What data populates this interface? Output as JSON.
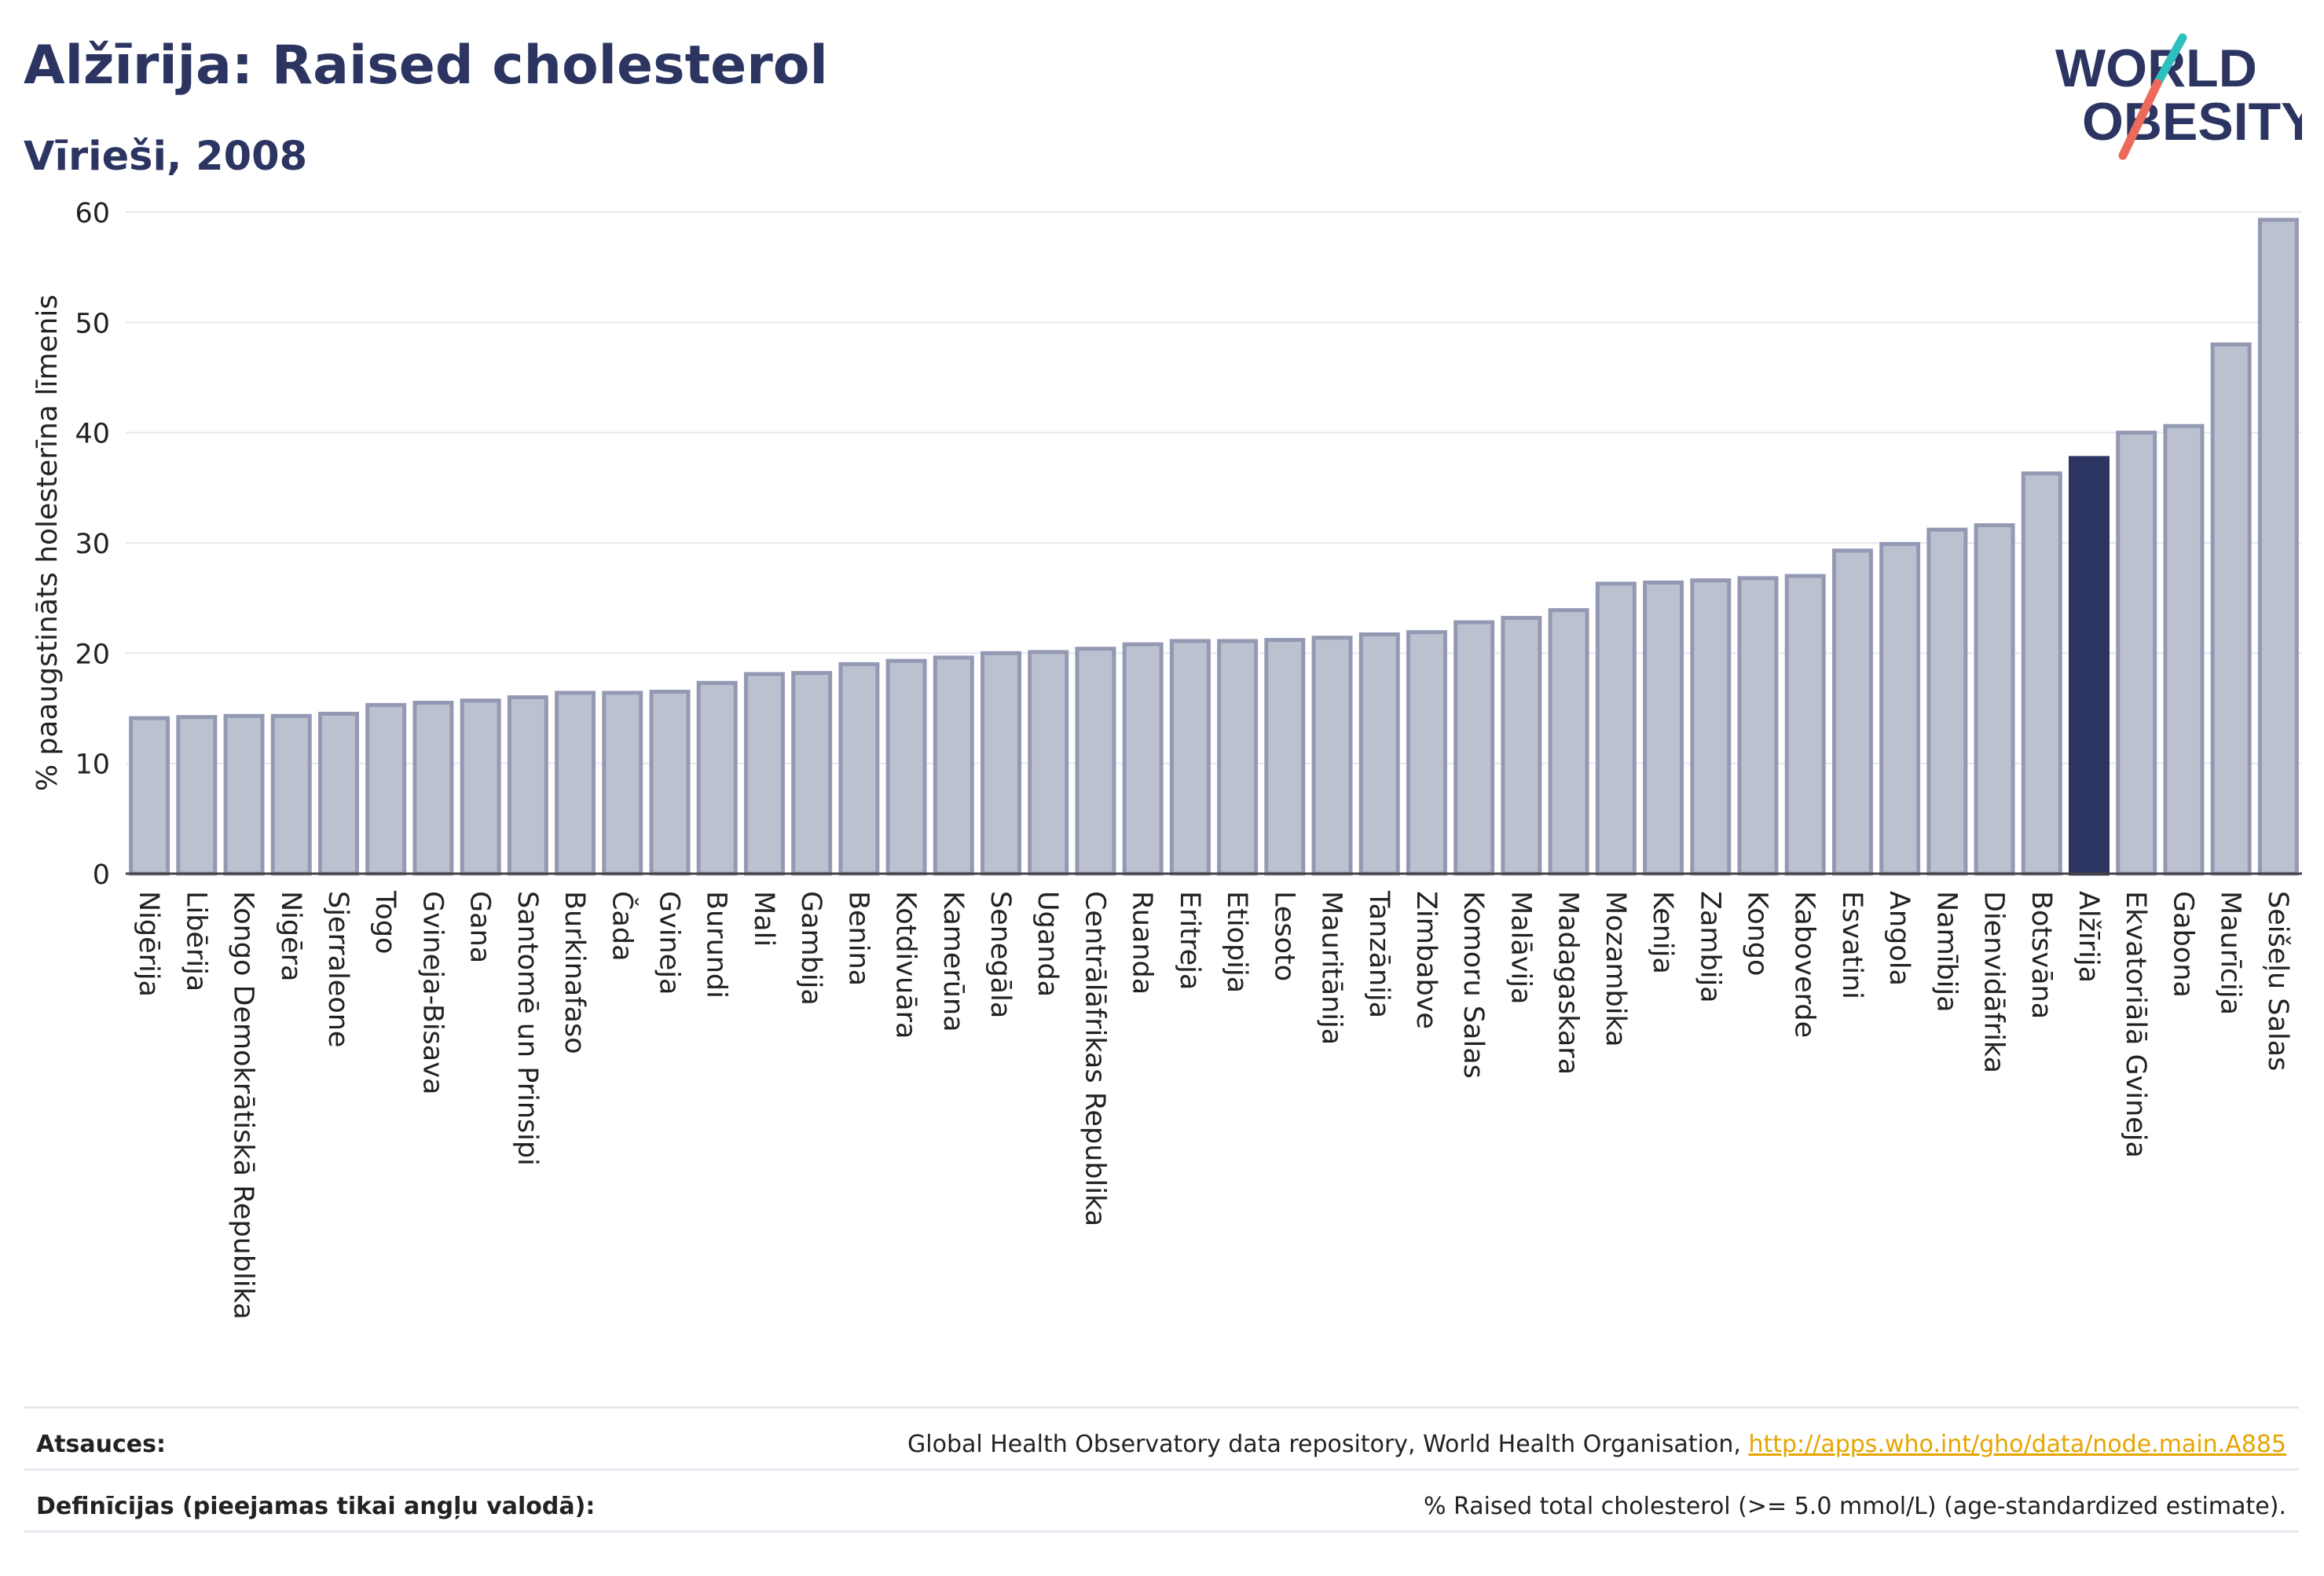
{
  "header": {
    "title": "Alžīrija: Raised cholesterol",
    "subtitle": "Vīrieši, 2008"
  },
  "logo": {
    "line1": "WORLD",
    "line2": "OBESITY"
  },
  "footer": {
    "sources_label": "Atsauces:",
    "sources_text": "Global Health Observatory data repository, World Health Organisation, ",
    "sources_link": "http://apps.who.int/gho/data/node.main.A885",
    "definitions_label": "Definīcijas (pieejamas tikai angļu valodā):",
    "definitions_text": "% Raised total cholesterol (>= 5.0 mmol/L) (age-standardized estimate)."
  },
  "colors": {
    "bar": "#bcc1d0",
    "bar_border": "#9399b2",
    "highlight": "#2c3561",
    "grid": "#e6e8f0",
    "title": "#2c3561"
  },
  "chart_data": {
    "type": "bar",
    "ylabel": "% paaugstināts holesterīna līmenis",
    "ylim": [
      0,
      60
    ],
    "yticks": [
      0,
      10,
      20,
      30,
      40,
      50,
      60
    ],
    "grid": true,
    "highlight": "Alžīrija",
    "categories": [
      "Nigērija",
      "Libērija",
      "Kongo Demokrātiskā Republika",
      "Nigēra",
      "Sjerraleone",
      "Togo",
      "Gvineja-Bisava",
      "Gana",
      "Santomē un Prinsipi",
      "Burkinafaso",
      "Čada",
      "Gvineja",
      "Burundi",
      "Mali",
      "Gambija",
      "Benina",
      "Kotdivuāra",
      "Kamerūna",
      "Senegāla",
      "Uganda",
      "Centrālāfrikas Republika",
      "Ruanda",
      "Eritreja",
      "Etiopija",
      "Lesoto",
      "Mauritānija",
      "Tanzānija",
      "Zimbabve",
      "Komoru Salas",
      "Malāvija",
      "Madagaskara",
      "Mozambika",
      "Kenija",
      "Zambija",
      "Kongo",
      "Kaboverde",
      "Esvatini",
      "Angola",
      "Namībija",
      "Dienvidāfrika",
      "Botsvāna",
      "Alžīrija",
      "Ekvatoriālā Gvineja",
      "Gabona",
      "Maurīcija",
      "Seišeļu Salas"
    ],
    "values": [
      14.1,
      14.2,
      14.3,
      14.3,
      14.5,
      15.3,
      15.5,
      15.7,
      16.0,
      16.4,
      16.4,
      16.5,
      17.3,
      18.1,
      18.2,
      19.0,
      19.3,
      19.6,
      20.0,
      20.1,
      20.4,
      20.8,
      21.1,
      21.1,
      21.2,
      21.4,
      21.7,
      21.9,
      22.8,
      23.2,
      23.9,
      26.3,
      26.4,
      26.6,
      26.8,
      27.0,
      29.3,
      29.9,
      31.2,
      31.6,
      36.3,
      37.7,
      40.0,
      40.6,
      48.0,
      59.3
    ]
  }
}
